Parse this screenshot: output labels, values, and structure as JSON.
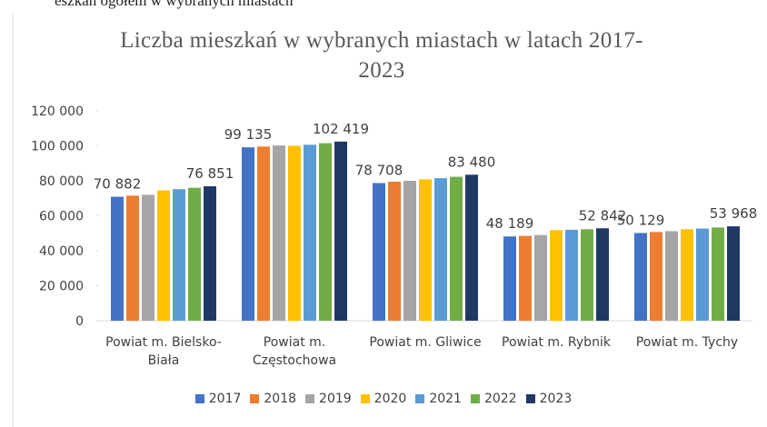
{
  "header": "eszkań ogółem w wybranych miastach",
  "chart_data": {
    "type": "bar",
    "title": "Liczba mieszkań w wybranych miastach w latach 2017-2023",
    "categories": [
      "Powiat m. Bielsko-Biała",
      "Powiat m. Częstochowa",
      "Powiat m. Gliwice",
      "Powiat m. Rybnik",
      "Powiat m. Tychy"
    ],
    "series": [
      {
        "name": "2017",
        "color": "#4472c4",
        "values": [
          70882,
          99135,
          78708,
          48189,
          50129
        ],
        "value_labels": [
          "70 882",
          "99 135",
          "78 708",
          "48 189",
          "50 129"
        ]
      },
      {
        "name": "2018",
        "color": "#ed7d31",
        "values": [
          71500,
          99600,
          79500,
          48500,
          50700
        ]
      },
      {
        "name": "2019",
        "color": "#a5a5a5",
        "values": [
          72000,
          100200,
          80000,
          49000,
          51200
        ]
      },
      {
        "name": "2020",
        "color": "#ffc000",
        "values": [
          74500,
          100000,
          80800,
          51800,
          52300
        ]
      },
      {
        "name": "2021",
        "color": "#5b9bd5",
        "values": [
          75200,
          100600,
          81500,
          52000,
          52700
        ]
      },
      {
        "name": "2022",
        "color": "#70ad47",
        "values": [
          76000,
          101500,
          82300,
          52300,
          53300
        ]
      },
      {
        "name": "2023",
        "color": "#203864",
        "values": [
          76851,
          102419,
          83480,
          52842,
          53968
        ],
        "value_labels": [
          "76 851",
          "102 419",
          "83 480",
          "52 842",
          "53 968"
        ]
      }
    ],
    "ylim": [
      0,
      120000
    ],
    "yticks": [
      0,
      {
        "value": 20000,
        "label": "20 000"
      },
      {
        "value": 40000,
        "label": "40 000"
      },
      {
        "value": 60000,
        "label": "60 000"
      },
      {
        "value": 80000,
        "label": "80 000"
      },
      {
        "value": 100000,
        "label": "100 000"
      },
      {
        "value": 120000,
        "label": "120 000"
      }
    ],
    "grid": false,
    "legend": "bottom"
  }
}
